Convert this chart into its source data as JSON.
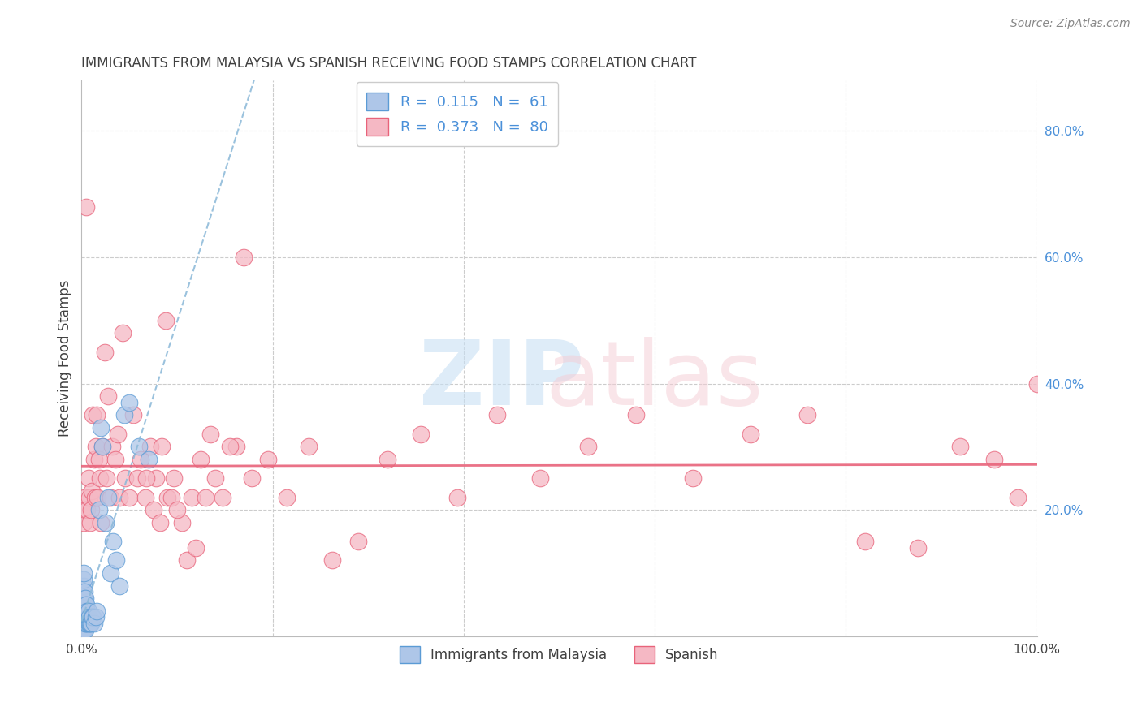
{
  "title": "IMMIGRANTS FROM MALAYSIA VS SPANISH RECEIVING FOOD STAMPS CORRELATION CHART",
  "source": "Source: ZipAtlas.com",
  "ylabel": "Receiving Food Stamps",
  "xlim": [
    0,
    1.0
  ],
  "ylim": [
    0,
    0.88
  ],
  "R_malaysia": 0.115,
  "N_malaysia": 61,
  "R_spanish": 0.373,
  "N_spanish": 80,
  "color_malaysia_fill": "#aec6e8",
  "color_malaysia_edge": "#5b9bd5",
  "color_spanish_fill": "#f5b8c4",
  "color_spanish_edge": "#e8637a",
  "color_malaysia_line": "#8ab8d8",
  "color_spanish_line": "#e8637a",
  "color_text_blue": "#4a90d9",
  "color_text_dark": "#404040",
  "background_color": "#ffffff",
  "grid_color": "#cccccc",
  "ytick_positions": [
    0.2,
    0.4,
    0.6,
    0.8
  ],
  "ytick_labels": [
    "20.0%",
    "40.0%",
    "60.0%",
    "80.0%"
  ],
  "malaysia_x": [
    0.001,
    0.001,
    0.001,
    0.001,
    0.001,
    0.001,
    0.002,
    0.002,
    0.002,
    0.002,
    0.002,
    0.002,
    0.002,
    0.002,
    0.002,
    0.002,
    0.003,
    0.003,
    0.003,
    0.003,
    0.003,
    0.003,
    0.003,
    0.004,
    0.004,
    0.004,
    0.004,
    0.004,
    0.004,
    0.005,
    0.005,
    0.005,
    0.005,
    0.006,
    0.006,
    0.006,
    0.007,
    0.007,
    0.007,
    0.008,
    0.008,
    0.009,
    0.01,
    0.011,
    0.012,
    0.013,
    0.015,
    0.016,
    0.018,
    0.02,
    0.022,
    0.025,
    0.028,
    0.03,
    0.033,
    0.036,
    0.04,
    0.045,
    0.05,
    0.06,
    0.07
  ],
  "malaysia_y": [
    0.01,
    0.02,
    0.03,
    0.04,
    0.05,
    0.06,
    0.01,
    0.02,
    0.03,
    0.04,
    0.05,
    0.06,
    0.07,
    0.08,
    0.09,
    0.1,
    0.01,
    0.02,
    0.03,
    0.04,
    0.05,
    0.06,
    0.07,
    0.01,
    0.02,
    0.03,
    0.04,
    0.05,
    0.06,
    0.02,
    0.03,
    0.04,
    0.05,
    0.02,
    0.03,
    0.04,
    0.02,
    0.03,
    0.04,
    0.02,
    0.03,
    0.02,
    0.02,
    0.03,
    0.03,
    0.02,
    0.03,
    0.04,
    0.2,
    0.33,
    0.3,
    0.18,
    0.22,
    0.1,
    0.15,
    0.12,
    0.08,
    0.35,
    0.37,
    0.3,
    0.28
  ],
  "spanish_x": [
    0.002,
    0.003,
    0.004,
    0.005,
    0.006,
    0.007,
    0.008,
    0.009,
    0.01,
    0.011,
    0.012,
    0.013,
    0.014,
    0.015,
    0.016,
    0.017,
    0.018,
    0.019,
    0.02,
    0.022,
    0.024,
    0.026,
    0.028,
    0.03,
    0.032,
    0.035,
    0.038,
    0.04,
    0.043,
    0.046,
    0.05,
    0.054,
    0.058,
    0.062,
    0.067,
    0.072,
    0.078,
    0.084,
    0.09,
    0.097,
    0.105,
    0.115,
    0.125,
    0.135,
    0.148,
    0.162,
    0.178,
    0.195,
    0.215,
    0.238,
    0.262,
    0.29,
    0.32,
    0.355,
    0.393,
    0.435,
    0.48,
    0.53,
    0.58,
    0.64,
    0.7,
    0.76,
    0.82,
    0.875,
    0.92,
    0.955,
    0.98,
    1.0,
    0.068,
    0.075,
    0.082,
    0.088,
    0.094,
    0.1,
    0.11,
    0.12,
    0.13,
    0.14,
    0.155,
    0.17
  ],
  "spanish_y": [
    0.18,
    0.22,
    0.2,
    0.68,
    0.2,
    0.25,
    0.22,
    0.18,
    0.2,
    0.23,
    0.35,
    0.28,
    0.22,
    0.3,
    0.35,
    0.22,
    0.28,
    0.25,
    0.18,
    0.3,
    0.45,
    0.25,
    0.38,
    0.22,
    0.3,
    0.28,
    0.32,
    0.22,
    0.48,
    0.25,
    0.22,
    0.35,
    0.25,
    0.28,
    0.22,
    0.3,
    0.25,
    0.3,
    0.22,
    0.25,
    0.18,
    0.22,
    0.28,
    0.32,
    0.22,
    0.3,
    0.25,
    0.28,
    0.22,
    0.3,
    0.12,
    0.15,
    0.28,
    0.32,
    0.22,
    0.35,
    0.25,
    0.3,
    0.35,
    0.25,
    0.32,
    0.35,
    0.15,
    0.14,
    0.3,
    0.28,
    0.22,
    0.4,
    0.25,
    0.2,
    0.18,
    0.5,
    0.22,
    0.2,
    0.12,
    0.14,
    0.22,
    0.25,
    0.3,
    0.6
  ]
}
